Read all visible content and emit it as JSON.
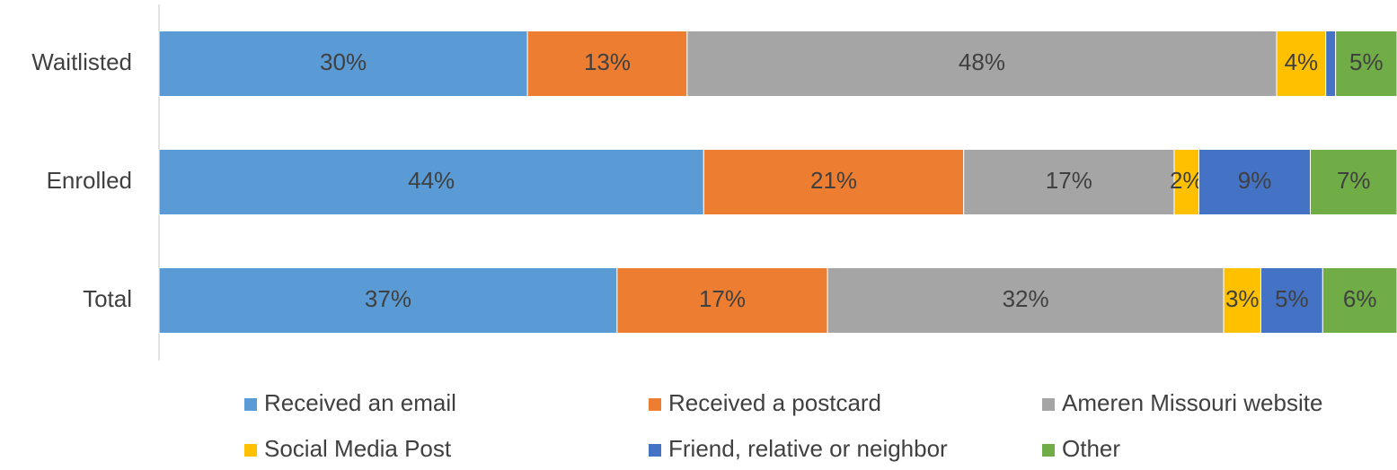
{
  "chart_data": {
    "type": "stacked-bar-horizontal",
    "categories": [
      "Waitlisted",
      "Enrolled",
      "Total"
    ],
    "series": [
      {
        "name": "Received an email",
        "color": "#5b9bd5",
        "values": [
          30,
          44,
          37
        ],
        "value_labels": [
          "30%",
          "44%",
          "37%"
        ]
      },
      {
        "name": "Received a postcard",
        "color": "#ed7d31",
        "values": [
          13,
          21,
          17
        ],
        "value_labels": [
          "13%",
          "21%",
          "17%"
        ]
      },
      {
        "name": "Ameren Missouri website",
        "color": "#a5a5a5",
        "values": [
          48,
          17,
          32
        ],
        "value_labels": [
          "48%",
          "17%",
          "32%"
        ]
      },
      {
        "name": "Social Media Post",
        "color": "#ffc000",
        "values": [
          4,
          2,
          3
        ],
        "value_labels": [
          "4%",
          "2%",
          "3%"
        ]
      },
      {
        "name": "Friend, relative or neighbor",
        "color": "#4472c4",
        "values": [
          0.8,
          9,
          5
        ],
        "value_labels": [
          null,
          "9%",
          "5%"
        ]
      },
      {
        "name": "Other",
        "color": "#70ad47",
        "values": [
          5,
          7,
          6
        ],
        "value_labels": [
          "5%",
          "7%",
          "6%"
        ]
      }
    ]
  }
}
